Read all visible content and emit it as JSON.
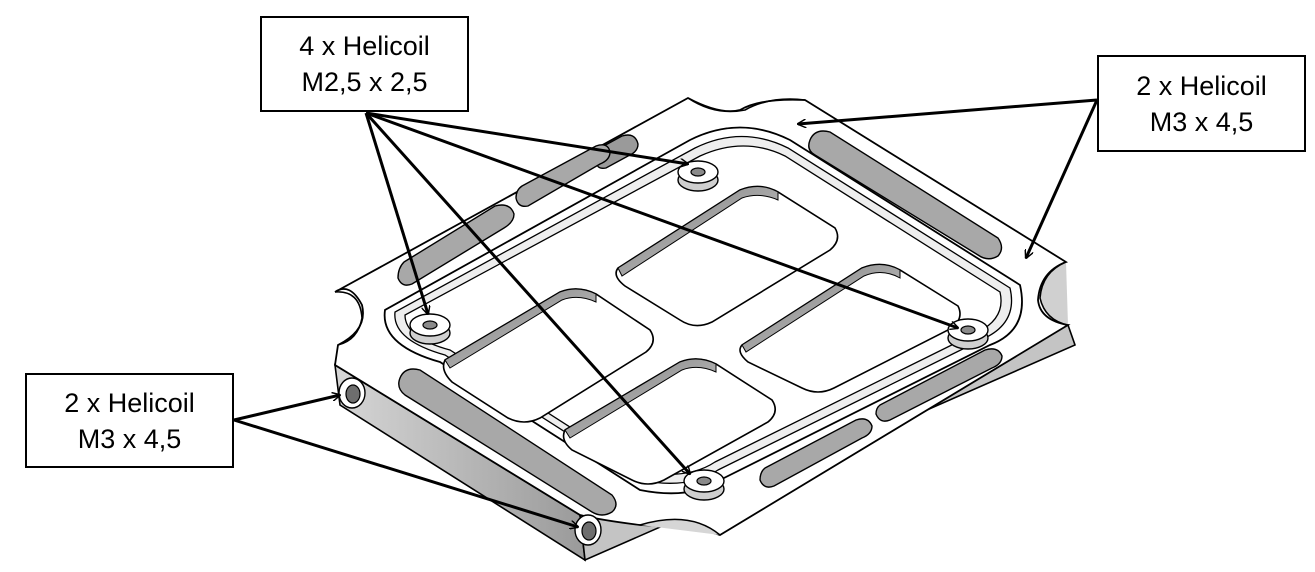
{
  "callouts": [
    {
      "id": "helicoil-m25",
      "line1": "4 x Helicoil",
      "line2": "M2,5 x 2,5"
    },
    {
      "id": "helicoil-m3-right",
      "line1": "2 x Helicoil",
      "line2": "M3 x 4,5"
    },
    {
      "id": "helicoil-m3-left",
      "line1": "2 x Helicoil",
      "line2": "M3 x 4,5"
    }
  ],
  "colors": {
    "line": "#000000",
    "face": "#ffffff",
    "side": "#bcbcbc",
    "shadow": "#8a8a8a"
  }
}
